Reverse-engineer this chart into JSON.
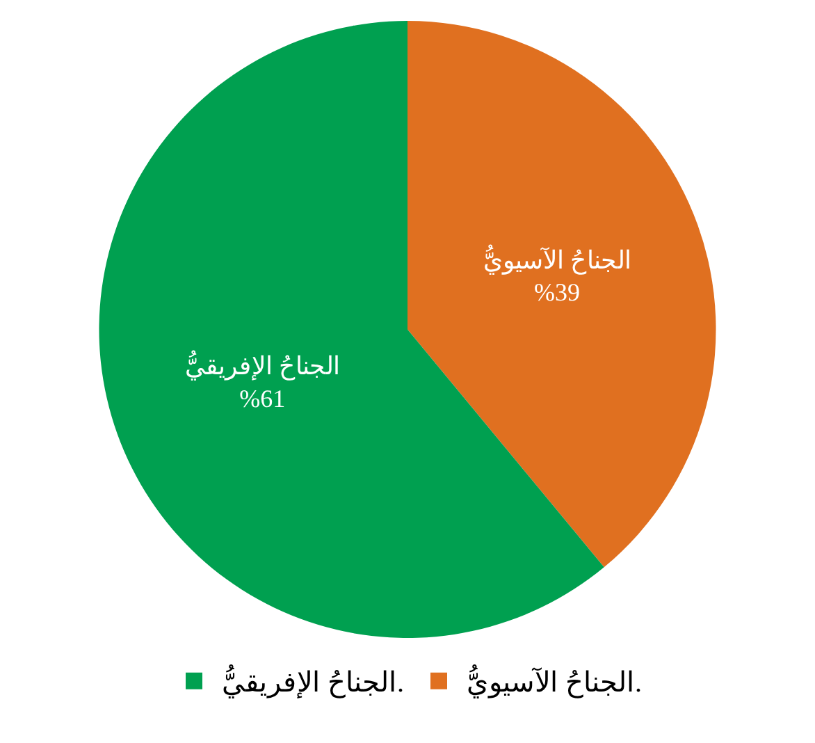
{
  "chart_data": {
    "type": "pie",
    "categories": [
      "الجناحُ الآسيويُّ.",
      "الجناحُ الإفريقيُّ."
    ],
    "values": [
      39,
      61
    ],
    "colors": [
      "#e07020",
      "#00a050"
    ],
    "value_labels": [
      "الجناحُ الآسيويُّ\n%39",
      "الجناحُ الإفريقيُّ\n%61"
    ],
    "legend": "bottom"
  }
}
